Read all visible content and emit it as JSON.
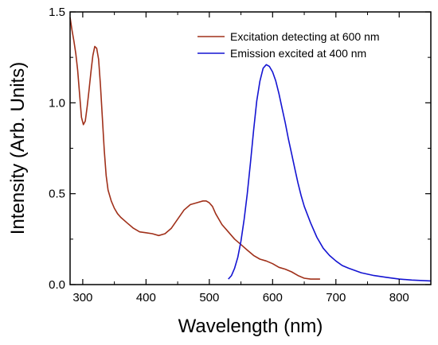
{
  "chart_data": {
    "type": "line",
    "title": "",
    "xlabel": "Wavelength (nm)",
    "ylabel": "Intensity (Arb. Units)",
    "xlim": [
      280,
      850
    ],
    "ylim": [
      0,
      1.5
    ],
    "xticks": [
      300,
      400,
      500,
      600,
      700,
      800
    ],
    "yticks": [
      0.0,
      0.5,
      1.0,
      1.5
    ],
    "xtick_labels": [
      "300",
      "400",
      "500",
      "600",
      "700",
      "800"
    ],
    "ytick_labels": [
      "0.0",
      "0.5",
      "1.0",
      "1.5"
    ],
    "grid": false,
    "legend_position": "top-right",
    "series": [
      {
        "name": "Excitation detecting at 600 nm",
        "color": "#a0301a",
        "x": [
          280,
          283,
          286,
          289,
          292,
          295,
          298,
          301,
          304,
          307,
          310,
          313,
          316,
          319,
          322,
          325,
          328,
          331,
          334,
          337,
          340,
          345,
          350,
          355,
          360,
          370,
          380,
          390,
          400,
          410,
          420,
          430,
          440,
          450,
          460,
          470,
          480,
          490,
          495,
          500,
          505,
          510,
          520,
          530,
          540,
          550,
          560,
          570,
          580,
          590,
          600,
          610,
          620,
          630,
          640,
          650,
          660,
          670,
          675
        ],
        "y": [
          1.47,
          1.4,
          1.34,
          1.27,
          1.18,
          1.05,
          0.92,
          0.88,
          0.9,
          0.98,
          1.07,
          1.17,
          1.26,
          1.31,
          1.3,
          1.24,
          1.1,
          0.92,
          0.74,
          0.6,
          0.52,
          0.46,
          0.42,
          0.39,
          0.37,
          0.34,
          0.31,
          0.29,
          0.285,
          0.28,
          0.27,
          0.28,
          0.31,
          0.36,
          0.41,
          0.44,
          0.45,
          0.46,
          0.46,
          0.45,
          0.43,
          0.39,
          0.33,
          0.29,
          0.25,
          0.22,
          0.19,
          0.16,
          0.14,
          0.13,
          0.115,
          0.095,
          0.085,
          0.07,
          0.05,
          0.035,
          0.03,
          0.03,
          0.03
        ]
      },
      {
        "name": "Emission excited at 400 nm",
        "color": "#1414d2",
        "x": [
          530,
          535,
          540,
          545,
          550,
          555,
          560,
          565,
          570,
          575,
          580,
          585,
          590,
          595,
          600,
          605,
          610,
          615,
          620,
          625,
          630,
          635,
          640,
          645,
          650,
          660,
          670,
          680,
          690,
          700,
          710,
          720,
          740,
          760,
          780,
          800,
          820,
          850
        ],
        "y": [
          0.03,
          0.05,
          0.09,
          0.15,
          0.24,
          0.36,
          0.5,
          0.67,
          0.85,
          1.01,
          1.12,
          1.19,
          1.21,
          1.2,
          1.17,
          1.12,
          1.05,
          0.97,
          0.89,
          0.8,
          0.72,
          0.64,
          0.56,
          0.49,
          0.43,
          0.34,
          0.26,
          0.2,
          0.16,
          0.13,
          0.105,
          0.09,
          0.065,
          0.05,
          0.04,
          0.03,
          0.025,
          0.02
        ]
      }
    ]
  }
}
